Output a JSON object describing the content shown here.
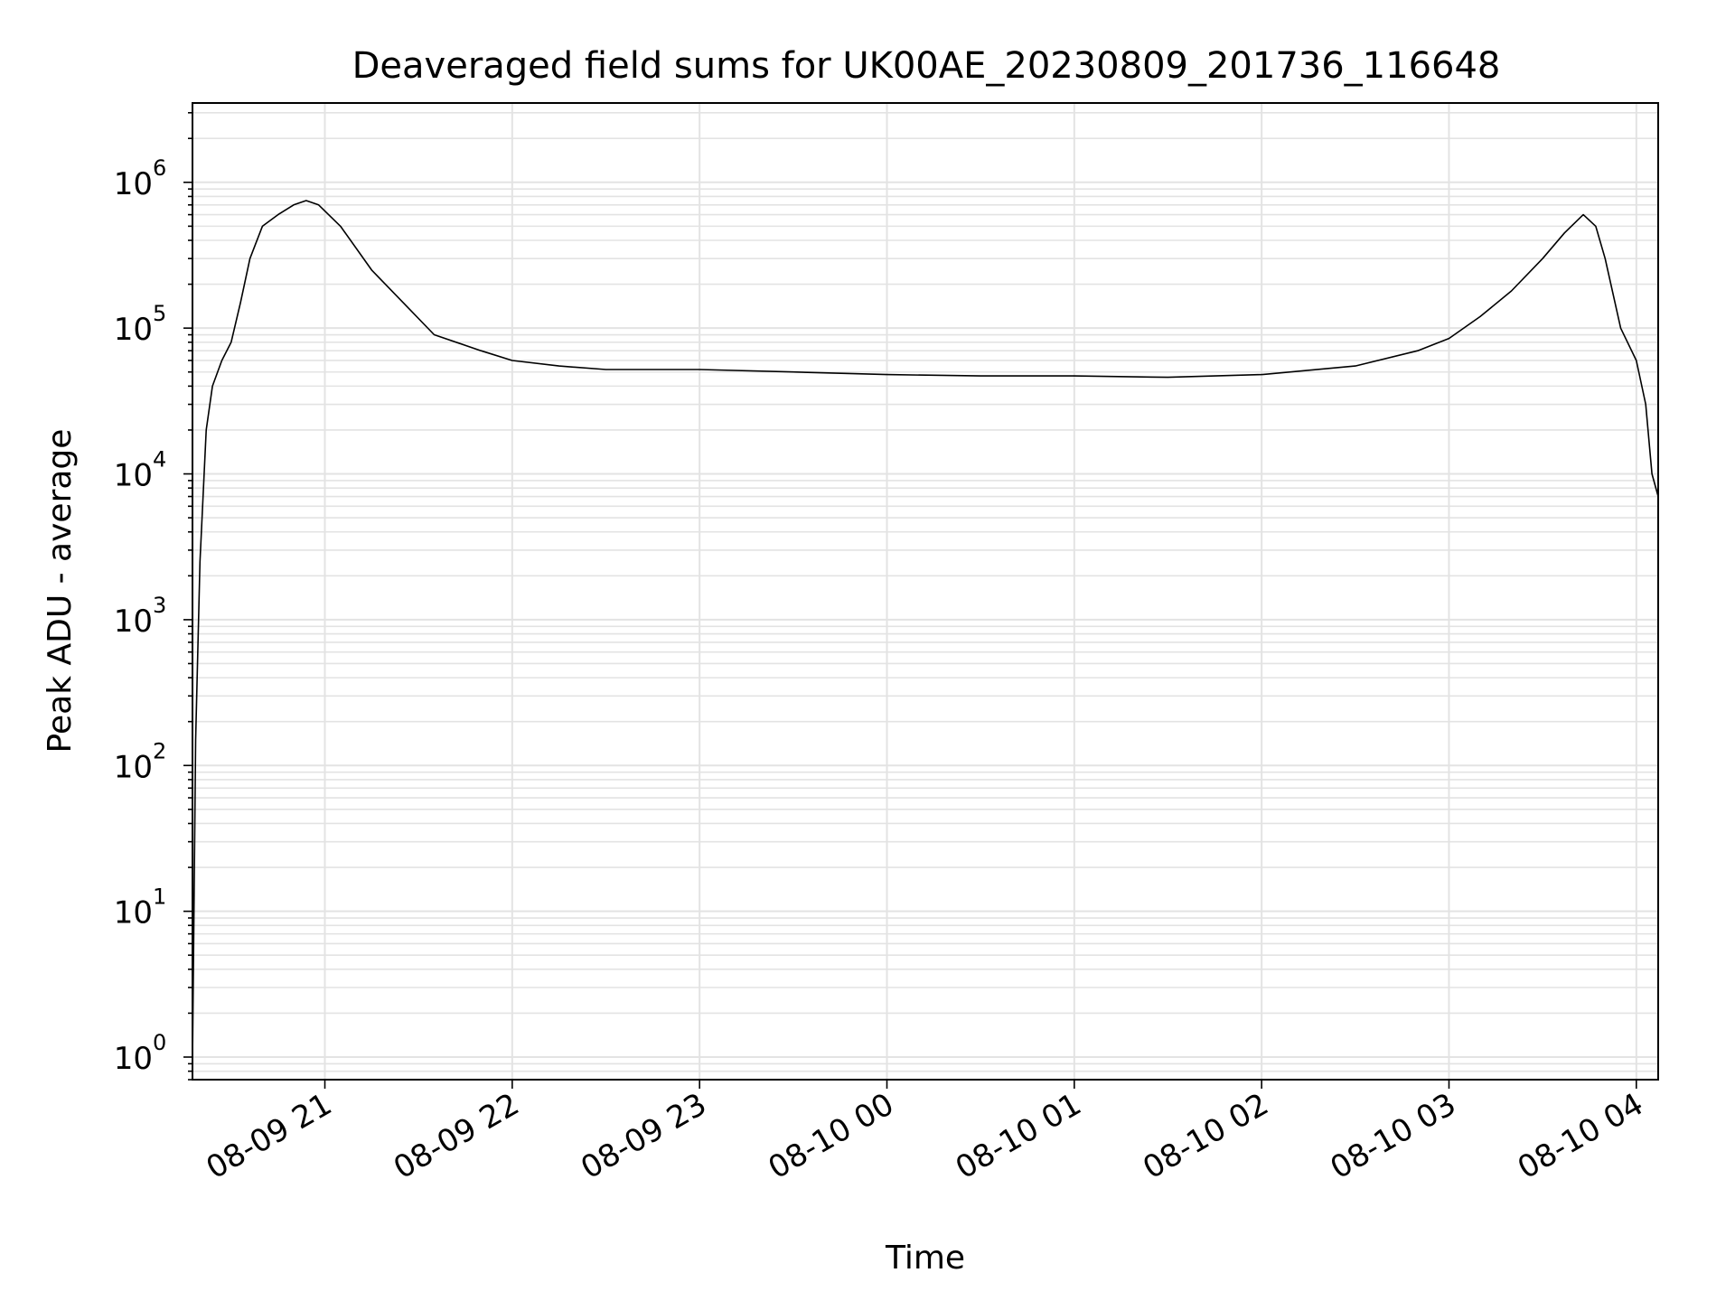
{
  "chart_data": {
    "type": "line",
    "title": "Deaveraged field sums for UK00AE_20230809_201736_116648",
    "xlabel": "Time",
    "ylabel": "Peak ADU - average",
    "y_scale": "log",
    "xlim": [
      "2023-08-09 20:17:36",
      "2023-08-10 04:07:00"
    ],
    "ylim": [
      0.7,
      3500000.0
    ],
    "x_ticks": [
      "08-09 21",
      "08-09 22",
      "08-09 23",
      "08-10 00",
      "08-10 01",
      "08-10 02",
      "08-10 03",
      "08-10 04"
    ],
    "y_ticks": [
      {
        "base": "10",
        "exp": "0"
      },
      {
        "base": "10",
        "exp": "1"
      },
      {
        "base": "10",
        "exp": "2"
      },
      {
        "base": "10",
        "exp": "3"
      },
      {
        "base": "10",
        "exp": "4"
      },
      {
        "base": "10",
        "exp": "5"
      },
      {
        "base": "10",
        "exp": "6"
      }
    ],
    "grid": true,
    "line_color": "#000000",
    "series": [
      {
        "x": [
          "2023-08-09 20:17:36",
          "2023-08-09 20:18:36",
          "2023-08-09 20:20:00",
          "2023-08-09 20:22:00",
          "2023-08-09 20:24:00",
          "2023-08-09 20:27:00",
          "2023-08-09 20:30:00",
          "2023-08-09 20:33:00",
          "2023-08-09 20:36:00",
          "2023-08-09 20:40:00",
          "2023-08-09 20:45:00",
          "2023-08-09 20:50:00",
          "2023-08-09 20:54:00",
          "2023-08-09 20:58:00",
          "2023-08-09 21:05:00",
          "2023-08-09 21:15:00",
          "2023-08-09 21:25:00",
          "2023-08-09 21:35:00",
          "2023-08-09 21:50:00",
          "2023-08-09 22:00:00",
          "2023-08-09 22:15:00",
          "2023-08-09 22:30:00",
          "2023-08-09 22:45:00",
          "2023-08-09 23:00:00",
          "2023-08-09 23:30:00",
          "2023-08-10 00:00:00",
          "2023-08-10 00:30:00",
          "2023-08-10 01:00:00",
          "2023-08-10 01:30:00",
          "2023-08-10 02:00:00",
          "2023-08-10 02:30:00",
          "2023-08-10 02:50:00",
          "2023-08-10 03:00:00",
          "2023-08-10 03:10:00",
          "2023-08-10 03:20:00",
          "2023-08-10 03:30:00",
          "2023-08-10 03:37:00",
          "2023-08-10 03:43:00",
          "2023-08-10 03:47:00",
          "2023-08-10 03:50:00",
          "2023-08-10 03:55:00",
          "2023-08-10 04:00:00",
          "2023-08-10 04:03:00",
          "2023-08-10 04:05:00",
          "2023-08-10 04:07:00"
        ],
        "y": [
          0.9,
          150,
          2500,
          20000,
          40000,
          60000,
          80000,
          150000,
          300000,
          500000,
          600000,
          700000,
          750000,
          700000,
          500000,
          250000,
          150000,
          90000,
          70000,
          60000,
          55000,
          52000,
          52000,
          52000,
          50000,
          48000,
          47000,
          47000,
          46000,
          48000,
          55000,
          70000,
          85000,
          120000,
          180000,
          300000,
          450000,
          600000,
          500000,
          300000,
          100000,
          60000,
          30000,
          10000,
          7000
        ]
      }
    ]
  }
}
